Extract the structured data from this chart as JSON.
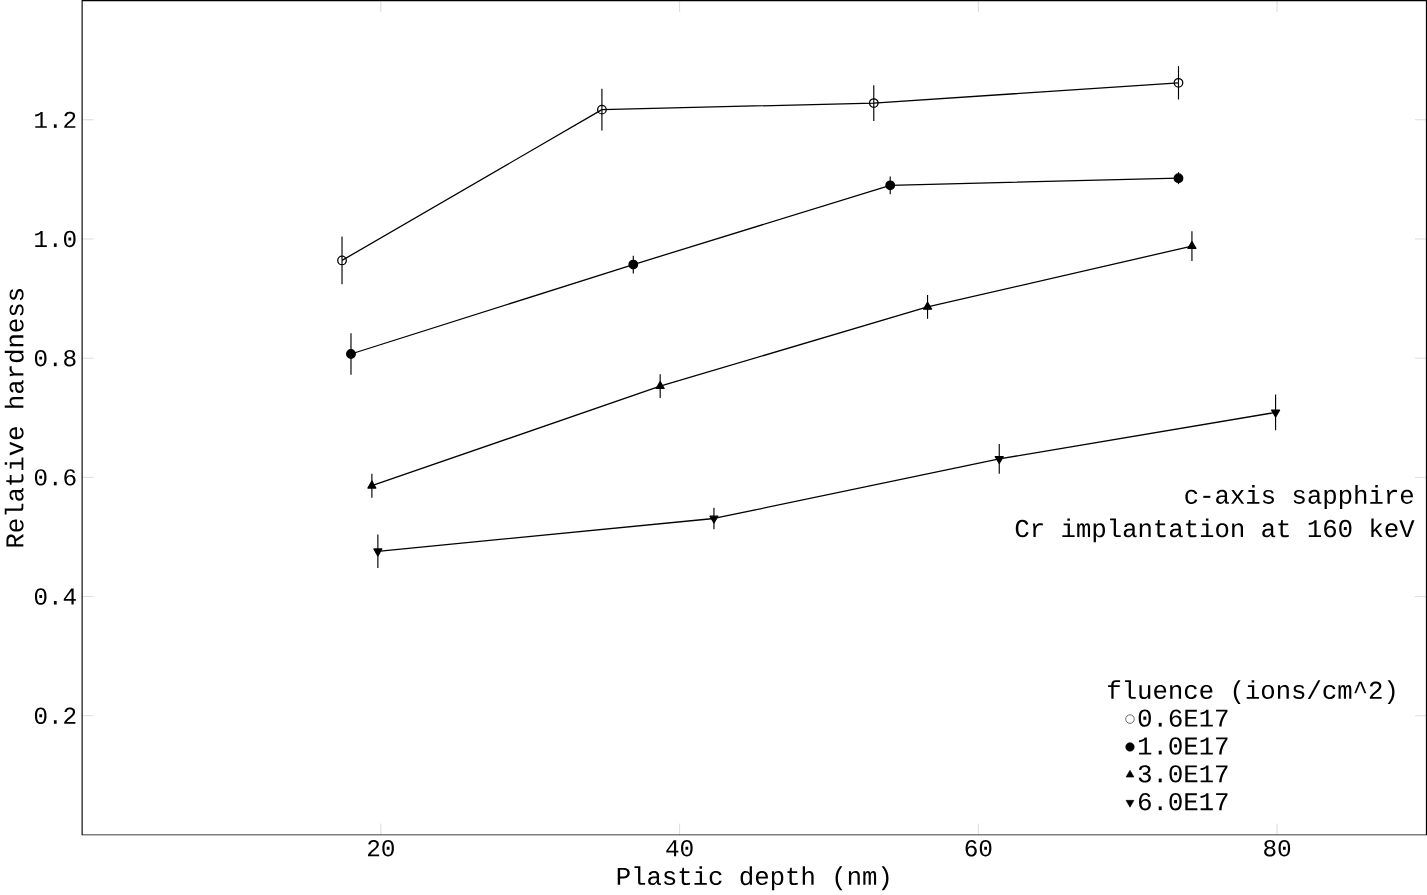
{
  "chart_data": {
    "type": "line",
    "xlabel": "Plastic depth (nm)",
    "ylabel": "Relative hardness",
    "legend_title": "fluence (ions/cm^2)",
    "annotations": [
      "c-axis sapphire",
      "Cr implantation at 160 keV"
    ],
    "xlim": [
      0,
      90
    ],
    "xticks": [
      20,
      40,
      60,
      80
    ],
    "ylim": [
      0,
      1.4
    ],
    "yticks": [
      0.2,
      0.4,
      0.6,
      0.8,
      {
        "value": 1.0,
        "label": "1.0"
      },
      1.2
    ],
    "grid": false,
    "legend": "bottom right",
    "series": [
      {
        "name": "0.6E17",
        "color": "#000000",
        "marker": "circle-open",
        "x": [
          17.4,
          34.8,
          53.0,
          73.4
        ],
        "values": [
          0.964,
          1.217,
          1.228,
          1.262
        ],
        "errors": [
          0.04,
          0.035,
          0.03,
          0.028
        ]
      },
      {
        "name": "1.0E17",
        "color": "#000000",
        "marker": "circle",
        "x": [
          18.0,
          36.9,
          54.1,
          73.4
        ],
        "values": [
          0.807,
          0.957,
          1.09,
          1.102
        ],
        "errors": [
          0.035,
          0.015,
          0.015,
          0.01
        ]
      },
      {
        "name": "3.0E17",
        "color": "#000000",
        "marker": "triangle",
        "x": [
          19.4,
          38.7,
          56.6,
          74.3
        ],
        "values": [
          0.586,
          0.753,
          0.886,
          0.988
        ],
        "errors": [
          0.02,
          0.02,
          0.02,
          0.025
        ]
      },
      {
        "name": "6.0E17",
        "color": "#000000",
        "marker": "triangle-down",
        "x": [
          19.8,
          42.3,
          61.4,
          79.9
        ],
        "values": [
          0.476,
          0.531,
          0.631,
          0.709
        ],
        "errors": [
          0.028,
          0.018,
          0.025,
          0.03
        ]
      }
    ]
  }
}
